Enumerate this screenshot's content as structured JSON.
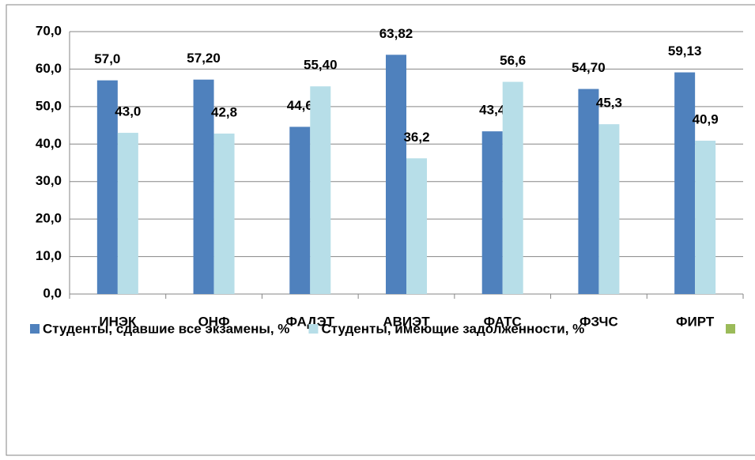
{
  "chart_data": {
    "type": "bar",
    "categories": [
      "ИНЭК",
      "ОНФ",
      "ФАДЭТ",
      "АВИЭТ",
      "ФАТС",
      "ФЗЧС",
      "ФИРТ"
    ],
    "series": [
      {
        "name": "Студенты, сдавшие все экзамены, %",
        "color": "#4f81bd",
        "values": [
          57.0,
          57.2,
          44.6,
          63.82,
          43.4,
          54.7,
          59.13
        ],
        "value_labels": [
          "57,0",
          "57,20",
          "44,6",
          "63,82",
          "43,4",
          "54,70",
          "59,13"
        ]
      },
      {
        "name": "Студенты, имеющие задолженности, %",
        "color": "#b7dee8",
        "values": [
          43.0,
          42.8,
          55.4,
          36.2,
          56.6,
          45.3,
          40.9
        ],
        "value_labels": [
          "43,0",
          "42,8",
          "55,40",
          "36,2",
          "56,6",
          "45,3",
          "40,9"
        ]
      }
    ],
    "ylim": [
      0,
      70
    ],
    "yticks": [
      {
        "value": 0,
        "label": "0,0"
      },
      {
        "value": 10,
        "label": "10,0"
      },
      {
        "value": 20,
        "label": "20,0"
      },
      {
        "value": 30,
        "label": "30,0"
      },
      {
        "value": 40,
        "label": "40,0"
      },
      {
        "value": 50,
        "label": "50,0"
      },
      {
        "value": 60,
        "label": "60,0"
      },
      {
        "value": 70,
        "label": "70,0"
      }
    ],
    "grid": true,
    "legend": "bottom"
  }
}
